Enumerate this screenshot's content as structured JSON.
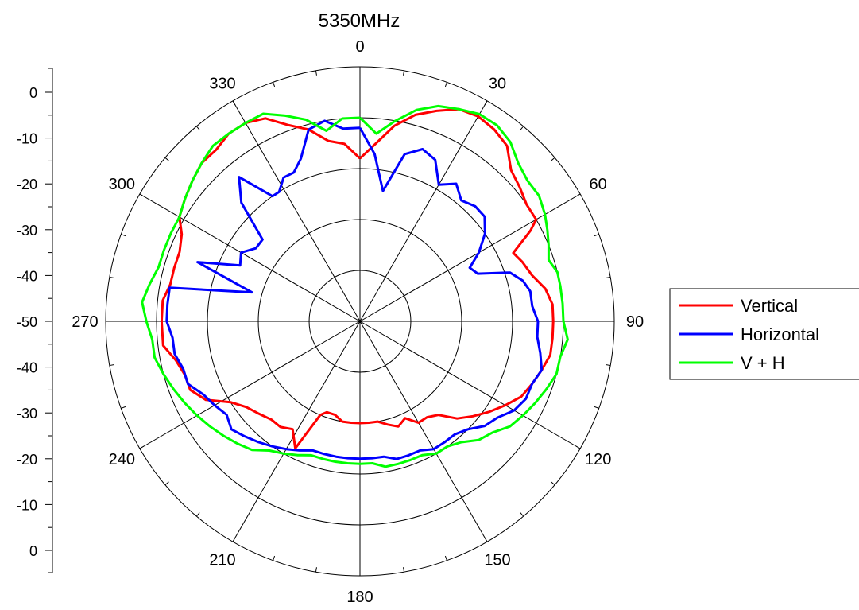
{
  "chart_data": {
    "type": "polar-line",
    "title": "5350MHz",
    "angle_ticks": [
      "0",
      "30",
      "60",
      "90",
      "120",
      "150",
      "180",
      "210",
      "240",
      "270",
      "300",
      "330"
    ],
    "radial_axis": {
      "ticks_upper": [
        "0",
        "-10",
        "-20",
        "-30",
        "-40",
        "-50"
      ],
      "ticks_lower": [
        "-40",
        "-30",
        "-20",
        "-10",
        "0"
      ],
      "range": [
        -50,
        0
      ],
      "rings": [
        -40,
        -30,
        -20,
        -10,
        0
      ]
    },
    "legend": {
      "placement": "right"
    },
    "series": [
      {
        "name": "Vertical",
        "color": "#ff0000",
        "points": [
          [
            0,
            -18
          ],
          [
            5,
            -15
          ],
          [
            10,
            -11
          ],
          [
            15,
            -8
          ],
          [
            20,
            -6
          ],
          [
            25,
            -4
          ],
          [
            30,
            -3.5
          ],
          [
            35,
            -4
          ],
          [
            40,
            -5
          ],
          [
            45,
            -8
          ],
          [
            50,
            -9
          ],
          [
            55,
            -10
          ],
          [
            60,
            -10
          ],
          [
            62,
            -12
          ],
          [
            66,
            -17
          ],
          [
            70,
            -16
          ],
          [
            75,
            -15
          ],
          [
            80,
            -13
          ],
          [
            85,
            -12
          ],
          [
            90,
            -12
          ],
          [
            95,
            -12
          ],
          [
            100,
            -12
          ],
          [
            105,
            -13
          ],
          [
            110,
            -14
          ],
          [
            115,
            -15
          ],
          [
            120,
            -17
          ],
          [
            125,
            -19
          ],
          [
            130,
            -21
          ],
          [
            135,
            -23
          ],
          [
            140,
            -26
          ],
          [
            145,
            -27
          ],
          [
            150,
            -27
          ],
          [
            155,
            -29
          ],
          [
            160,
            -28
          ],
          [
            165,
            -29
          ],
          [
            170,
            -30
          ],
          [
            175,
            -30
          ],
          [
            180,
            -30
          ],
          [
            185,
            -30
          ],
          [
            190,
            -30
          ],
          [
            195,
            -31
          ],
          [
            200,
            -31
          ],
          [
            203,
            -30
          ],
          [
            207,
            -22
          ],
          [
            212,
            -25
          ],
          [
            217,
            -24
          ],
          [
            222,
            -24
          ],
          [
            228,
            -23
          ],
          [
            233,
            -22
          ],
          [
            238,
            -20
          ],
          [
            243,
            -16
          ],
          [
            248,
            -14
          ],
          [
            253,
            -14
          ],
          [
            258,
            -13
          ],
          [
            263,
            -11
          ],
          [
            270,
            -11
          ],
          [
            276,
            -11
          ],
          [
            281,
            -12
          ],
          [
            286,
            -12
          ],
          [
            291,
            -12
          ],
          [
            296,
            -11
          ],
          [
            300,
            -9
          ],
          [
            305,
            -8
          ],
          [
            310,
            -7
          ],
          [
            315,
            -6
          ],
          [
            320,
            -6
          ],
          [
            325,
            -5
          ],
          [
            330,
            -5
          ],
          [
            335,
            -6
          ],
          [
            340,
            -9
          ],
          [
            345,
            -11
          ],
          [
            350,
            -14
          ],
          [
            355,
            -15
          ],
          [
            360,
            -18
          ]
        ]
      },
      {
        "name": "Horizontal",
        "color": "#0000ff",
        "points": [
          [
            0,
            -12
          ],
          [
            5,
            -17
          ],
          [
            10,
            -24
          ],
          [
            15,
            -16
          ],
          [
            20,
            -14
          ],
          [
            25,
            -15
          ],
          [
            30,
            -19
          ],
          [
            35,
            -17
          ],
          [
            40,
            -19
          ],
          [
            45,
            -18
          ],
          [
            50,
            -18
          ],
          [
            55,
            -20
          ],
          [
            60,
            -23
          ],
          [
            64,
            -26
          ],
          [
            68,
            -25
          ],
          [
            72,
            -19
          ],
          [
            76,
            -17
          ],
          [
            80,
            -16
          ],
          [
            85,
            -16
          ],
          [
            90,
            -15
          ],
          [
            95,
            -15
          ],
          [
            100,
            -14
          ],
          [
            105,
            -13
          ],
          [
            110,
            -14
          ],
          [
            115,
            -14
          ],
          [
            120,
            -15
          ],
          [
            125,
            -17
          ],
          [
            130,
            -18
          ],
          [
            135,
            -20
          ],
          [
            140,
            -21
          ],
          [
            145,
            -21
          ],
          [
            150,
            -21
          ],
          [
            155,
            -22
          ],
          [
            160,
            -22
          ],
          [
            165,
            -22
          ],
          [
            170,
            -23
          ],
          [
            175,
            -23
          ],
          [
            180,
            -23
          ],
          [
            185,
            -23
          ],
          [
            190,
            -23
          ],
          [
            195,
            -23
          ],
          [
            200,
            -23
          ],
          [
            205,
            -22
          ],
          [
            210,
            -21
          ],
          [
            215,
            -20
          ],
          [
            220,
            -19
          ],
          [
            225,
            -18
          ],
          [
            230,
            -17
          ],
          [
            235,
            -18
          ],
          [
            240,
            -17
          ],
          [
            245,
            -16
          ],
          [
            250,
            -14
          ],
          [
            255,
            -14
          ],
          [
            260,
            -13
          ],
          [
            265,
            -13
          ],
          [
            270,
            -12
          ],
          [
            275,
            -12
          ],
          [
            280,
            -12
          ],
          [
            285,
            -28
          ],
          [
            290,
            -16
          ],
          [
            295,
            -24
          ],
          [
            300,
            -23
          ],
          [
            305,
            -25
          ],
          [
            310,
            -25
          ],
          [
            315,
            -17
          ],
          [
            320,
            -13
          ],
          [
            325,
            -20
          ],
          [
            328,
            -20
          ],
          [
            332,
            -18
          ],
          [
            336,
            -18
          ],
          [
            340,
            -16
          ],
          [
            345,
            -11
          ],
          [
            350,
            -10
          ],
          [
            355,
            -12
          ],
          [
            360,
            -12
          ]
        ]
      },
      {
        "name": "V + H",
        "color": "#00ff00",
        "points": [
          [
            0,
            -10
          ],
          [
            5,
            -13
          ],
          [
            10,
            -10
          ],
          [
            15,
            -7
          ],
          [
            20,
            -5
          ],
          [
            25,
            -4
          ],
          [
            30,
            -3
          ],
          [
            35,
            -3
          ],
          [
            40,
            -4
          ],
          [
            45,
            -6
          ],
          [
            50,
            -7
          ],
          [
            55,
            -7
          ],
          [
            60,
            -8
          ],
          [
            64,
            -9
          ],
          [
            68,
            -10
          ],
          [
            72,
            -11
          ],
          [
            76,
            -10
          ],
          [
            80,
            -10
          ],
          [
            85,
            -10
          ],
          [
            90,
            -10
          ],
          [
            95,
            -9
          ],
          [
            100,
            -10
          ],
          [
            105,
            -10
          ],
          [
            110,
            -11
          ],
          [
            115,
            -12
          ],
          [
            120,
            -13
          ],
          [
            125,
            -14
          ],
          [
            130,
            -16
          ],
          [
            135,
            -17
          ],
          [
            140,
            -19
          ],
          [
            145,
            -20
          ],
          [
            150,
            -20
          ],
          [
            155,
            -21
          ],
          [
            160,
            -21
          ],
          [
            165,
            -21
          ],
          [
            170,
            -21
          ],
          [
            175,
            -22
          ],
          [
            180,
            -22
          ],
          [
            185,
            -22
          ],
          [
            190,
            -22
          ],
          [
            195,
            -22
          ],
          [
            200,
            -22
          ],
          [
            205,
            -21
          ],
          [
            210,
            -20
          ],
          [
            215,
            -19
          ],
          [
            220,
            -17
          ],
          [
            225,
            -16
          ],
          [
            230,
            -15
          ],
          [
            235,
            -14
          ],
          [
            240,
            -13
          ],
          [
            245,
            -12
          ],
          [
            250,
            -11
          ],
          [
            255,
            -10
          ],
          [
            260,
            -9
          ],
          [
            265,
            -9
          ],
          [
            270,
            -8
          ],
          [
            275,
            -7
          ],
          [
            280,
            -8
          ],
          [
            285,
            -9
          ],
          [
            290,
            -9
          ],
          [
            295,
            -9
          ],
          [
            300,
            -9
          ],
          [
            305,
            -8
          ],
          [
            310,
            -7
          ],
          [
            315,
            -6
          ],
          [
            320,
            -5
          ],
          [
            325,
            -5
          ],
          [
            330,
            -5
          ],
          [
            335,
            -5
          ],
          [
            340,
            -7
          ],
          [
            345,
            -9
          ],
          [
            350,
            -12
          ],
          [
            355,
            -10
          ],
          [
            360,
            -10
          ]
        ]
      }
    ]
  }
}
